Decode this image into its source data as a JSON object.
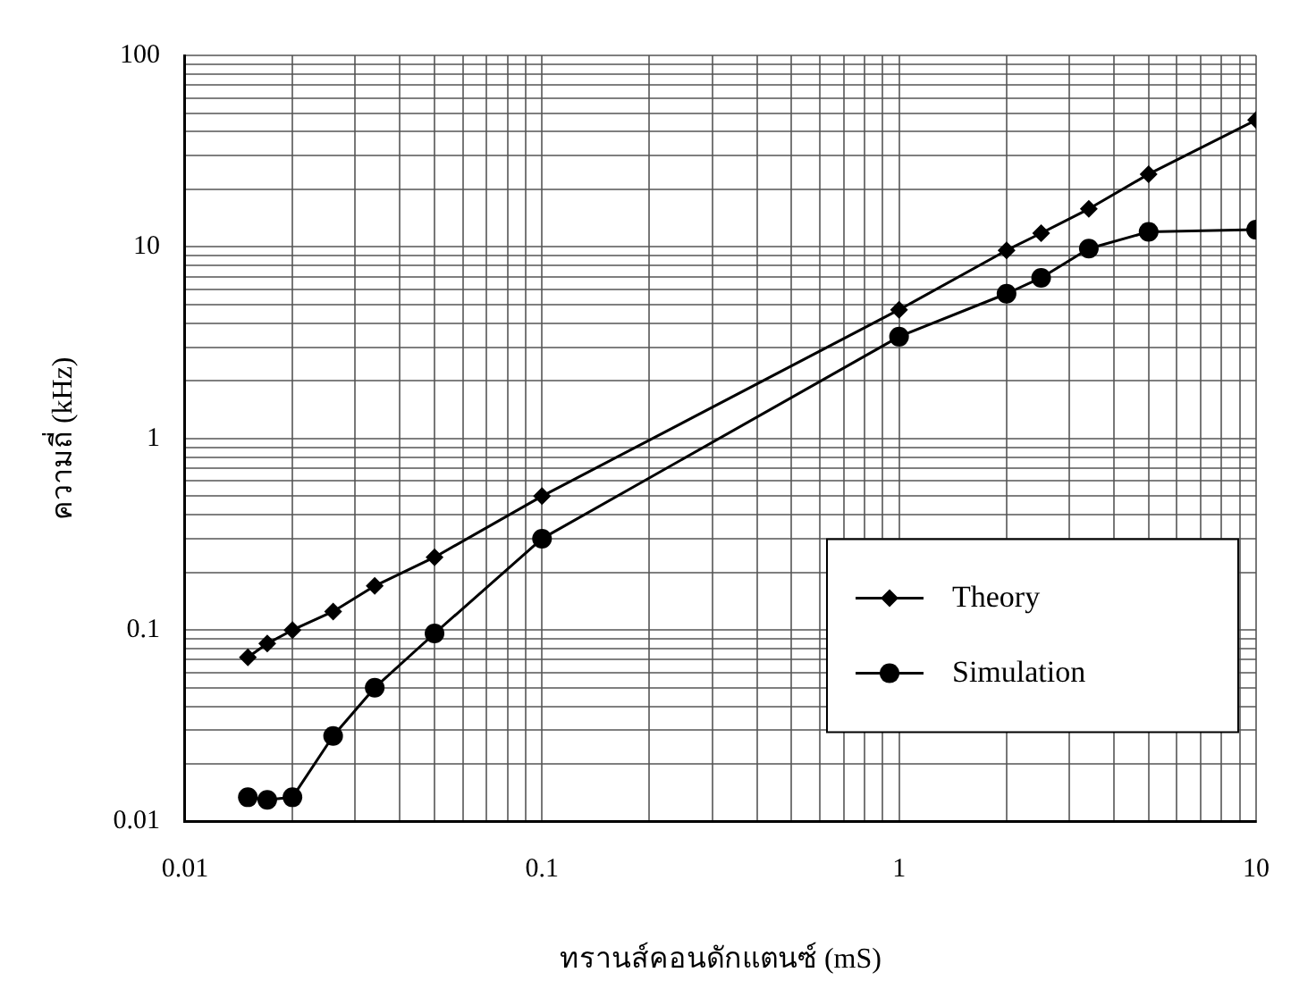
{
  "chart_data": {
    "type": "line",
    "xlabel": "ทรานส์คอนดักแตนซ์ (mS)",
    "ylabel": "ความถี่ (kHz)",
    "log": "xy",
    "grid": true,
    "legend": "bottom right",
    "line_style": "solid",
    "xlim": [
      0.01,
      10
    ],
    "ylim": [
      0.01,
      100
    ],
    "xticks": [
      0.01,
      {
        "value": 0.02,
        "label": null
      },
      {
        "value": 0.03,
        "label": null
      },
      {
        "value": 0.04,
        "label": null
      },
      {
        "value": 0.05,
        "label": null
      },
      {
        "value": 0.06,
        "label": null
      },
      {
        "value": 0.07,
        "label": null
      },
      {
        "value": 0.08,
        "label": null
      },
      {
        "value": 0.09,
        "label": null
      },
      0.1,
      {
        "value": 0.2,
        "label": null
      },
      {
        "value": 0.3,
        "label": null
      },
      {
        "value": 0.4,
        "label": null
      },
      {
        "value": 0.5,
        "label": null
      },
      {
        "value": 0.6,
        "label": null
      },
      {
        "value": 0.7,
        "label": null
      },
      {
        "value": 0.8,
        "label": null
      },
      {
        "value": 0.9,
        "label": null
      },
      1,
      {
        "value": 2,
        "label": null
      },
      {
        "value": 3,
        "label": null
      },
      {
        "value": 4,
        "label": null
      },
      {
        "value": 5,
        "label": null
      },
      {
        "value": 6,
        "label": null
      },
      {
        "value": 7,
        "label": null
      },
      {
        "value": 8,
        "label": null
      },
      {
        "value": 9,
        "label": null
      },
      10
    ],
    "yticks": [
      0.01,
      {
        "value": 0.02,
        "label": null
      },
      {
        "value": 0.03,
        "label": null
      },
      {
        "value": 0.04,
        "label": null
      },
      {
        "value": 0.05,
        "label": null
      },
      {
        "value": 0.06,
        "label": null
      },
      {
        "value": 0.07,
        "label": null
      },
      {
        "value": 0.08,
        "label": null
      },
      {
        "value": 0.09,
        "label": null
      },
      0.1,
      {
        "value": 0.2,
        "label": null
      },
      {
        "value": 0.3,
        "label": null
      },
      {
        "value": 0.4,
        "label": null
      },
      {
        "value": 0.5,
        "label": null
      },
      {
        "value": 0.6,
        "label": null
      },
      {
        "value": 0.7,
        "label": null
      },
      {
        "value": 0.8,
        "label": null
      },
      {
        "value": 0.9,
        "label": null
      },
      1,
      {
        "value": 2,
        "label": null
      },
      {
        "value": 3,
        "label": null
      },
      {
        "value": 4,
        "label": null
      },
      {
        "value": 5,
        "label": null
      },
      {
        "value": 6,
        "label": null
      },
      {
        "value": 7,
        "label": null
      },
      {
        "value": 8,
        "label": null
      },
      {
        "value": 9,
        "label": null
      },
      10,
      {
        "value": 20,
        "label": null
      },
      {
        "value": 30,
        "label": null
      },
      {
        "value": 40,
        "label": null
      },
      {
        "value": 50,
        "label": null
      },
      {
        "value": 60,
        "label": null
      },
      {
        "value": 70,
        "label": null
      },
      {
        "value": 80,
        "label": null
      },
      {
        "value": 90,
        "label": null
      },
      100
    ],
    "x": [
      0.015,
      0.017,
      0.02,
      0.026,
      0.034,
      0.05,
      0.1,
      1,
      2,
      2.5,
      3.4,
      5,
      10
    ],
    "series": [
      {
        "name": "Theory",
        "color": "#000000",
        "marker": "diamond",
        "values": [
          0.072,
          0.085,
          0.1,
          0.125,
          0.17,
          0.24,
          0.5,
          4.7,
          9.6,
          11.8,
          15.8,
          24,
          46
        ]
      },
      {
        "name": "Simulation",
        "color": "#000000",
        "marker": "circle",
        "values": [
          0.0134,
          0.013,
          0.0134,
          0.028,
          0.05,
          0.096,
          0.3,
          3.4,
          5.7,
          6.9,
          9.8,
          12,
          12.3
        ]
      }
    ]
  }
}
